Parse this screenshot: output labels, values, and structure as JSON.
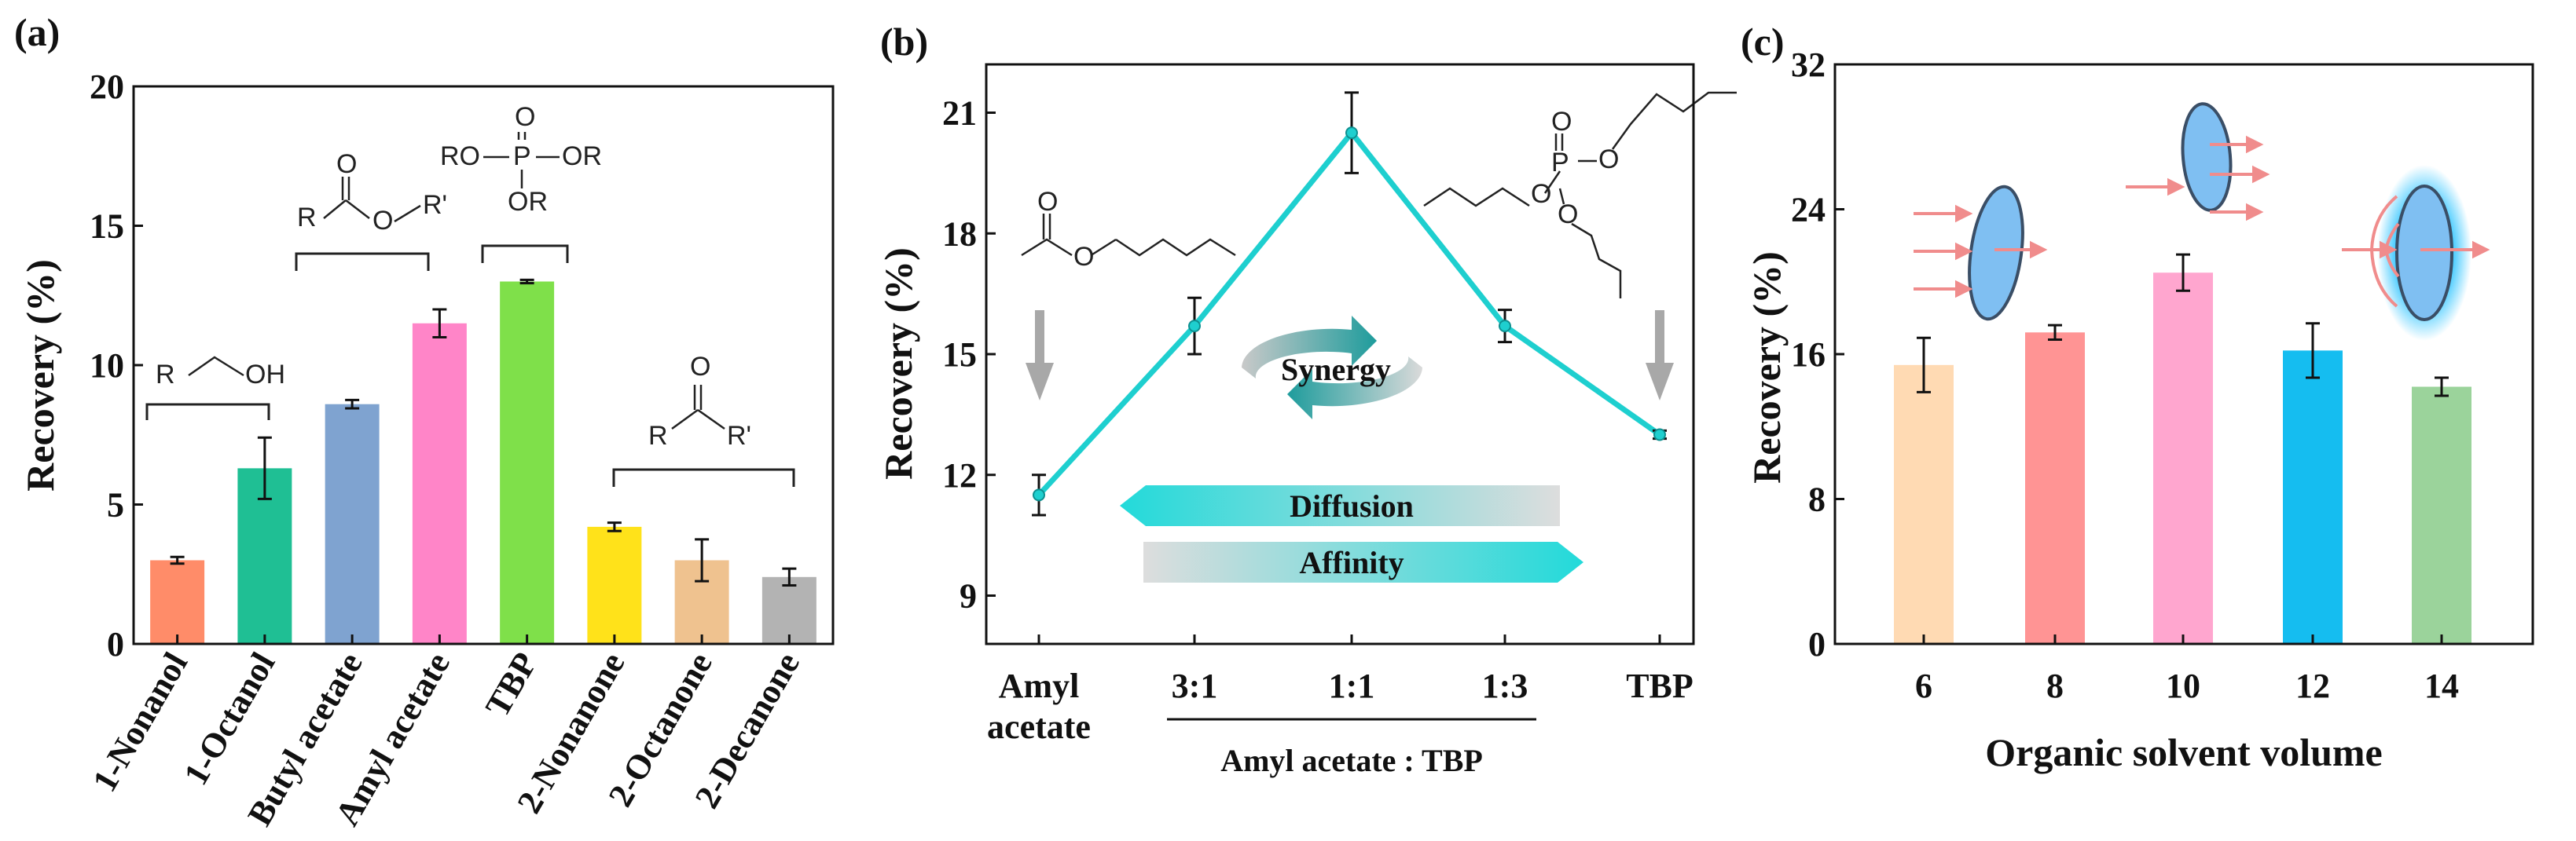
{
  "chart_data": [
    {
      "panel": "(a)",
      "type": "bar",
      "ylabel": "Recovery (%)",
      "ylim": [
        0,
        20
      ],
      "yticks": [
        "0",
        "5",
        "10",
        "15",
        "20"
      ],
      "categories": [
        "1-Nonanol",
        "1-Octanol",
        "Butyl acetate",
        "Amyl acetate",
        "TBP",
        "2-Nonanone",
        "2-Octanone",
        "2-Decanone"
      ],
      "values": [
        3.0,
        6.3,
        8.6,
        11.5,
        13.0,
        4.2,
        3.0,
        2.4
      ],
      "errors": [
        0.12,
        1.1,
        0.15,
        0.5,
        0.06,
        0.15,
        0.75,
        0.3
      ],
      "colors": [
        "#FF8C69",
        "#1FBF94",
        "#7FA3D0",
        "#FF85C8",
        "#7FE04A",
        "#FFE21A",
        "#EFC28F",
        "#B3B3B3"
      ],
      "annotations": {
        "alcohol_formula": "R",
        "alcohol_oh": "OH",
        "ester_r": "R",
        "ester_o": "O",
        "ester_or": "O",
        "ester_rprime": "R'",
        "phosphate_o": "O",
        "phosphate_p": "P",
        "phosphate_ro": "RO",
        "phosphate_or_right": "OR",
        "phosphate_or_bottom": "OR",
        "ketone_o": "O",
        "ketone_r": "R",
        "ketone_rprime": "R'"
      }
    },
    {
      "panel": "(b)",
      "type": "line",
      "ylabel": "Recovery (%)",
      "ylim": [
        7.8,
        22.2
      ],
      "yticks": [
        "9",
        "12",
        "15",
        "18",
        "21"
      ],
      "categories": [
        "Amyl acetate",
        "3:1",
        "1:1",
        "1:3",
        "TBP"
      ],
      "values": [
        11.5,
        15.7,
        20.5,
        15.7,
        13.0
      ],
      "errors": [
        0.5,
        0.7,
        1.0,
        0.4,
        0.1
      ],
      "line_color": "#1ECFCF",
      "xlabel": "Amyl acetate : TBP",
      "labels": {
        "first_line1": "Amyl",
        "first_line2": "acetate",
        "synergy": "Synergy",
        "diffusion": "Diffusion",
        "affinity": "Affinity",
        "tbp_o": "O",
        "tbp_p": "P"
      }
    },
    {
      "panel": "(c)",
      "type": "bar",
      "ylabel": "Recovery (%)",
      "xlabel": "Organic solvent volume",
      "ylim": [
        0,
        32
      ],
      "yticks": [
        "0",
        "8",
        "16",
        "24",
        "32"
      ],
      "categories": [
        "6",
        "8",
        "10",
        "12",
        "14"
      ],
      "values": [
        15.4,
        17.2,
        20.5,
        16.2,
        14.2
      ],
      "errors": [
        1.5,
        0.4,
        1.0,
        1.5,
        0.5
      ],
      "colors": [
        "#FFDAB3",
        "#FF9494",
        "#FFA6CF",
        "#15BDF0",
        "#9BD39B"
      ]
    }
  ]
}
